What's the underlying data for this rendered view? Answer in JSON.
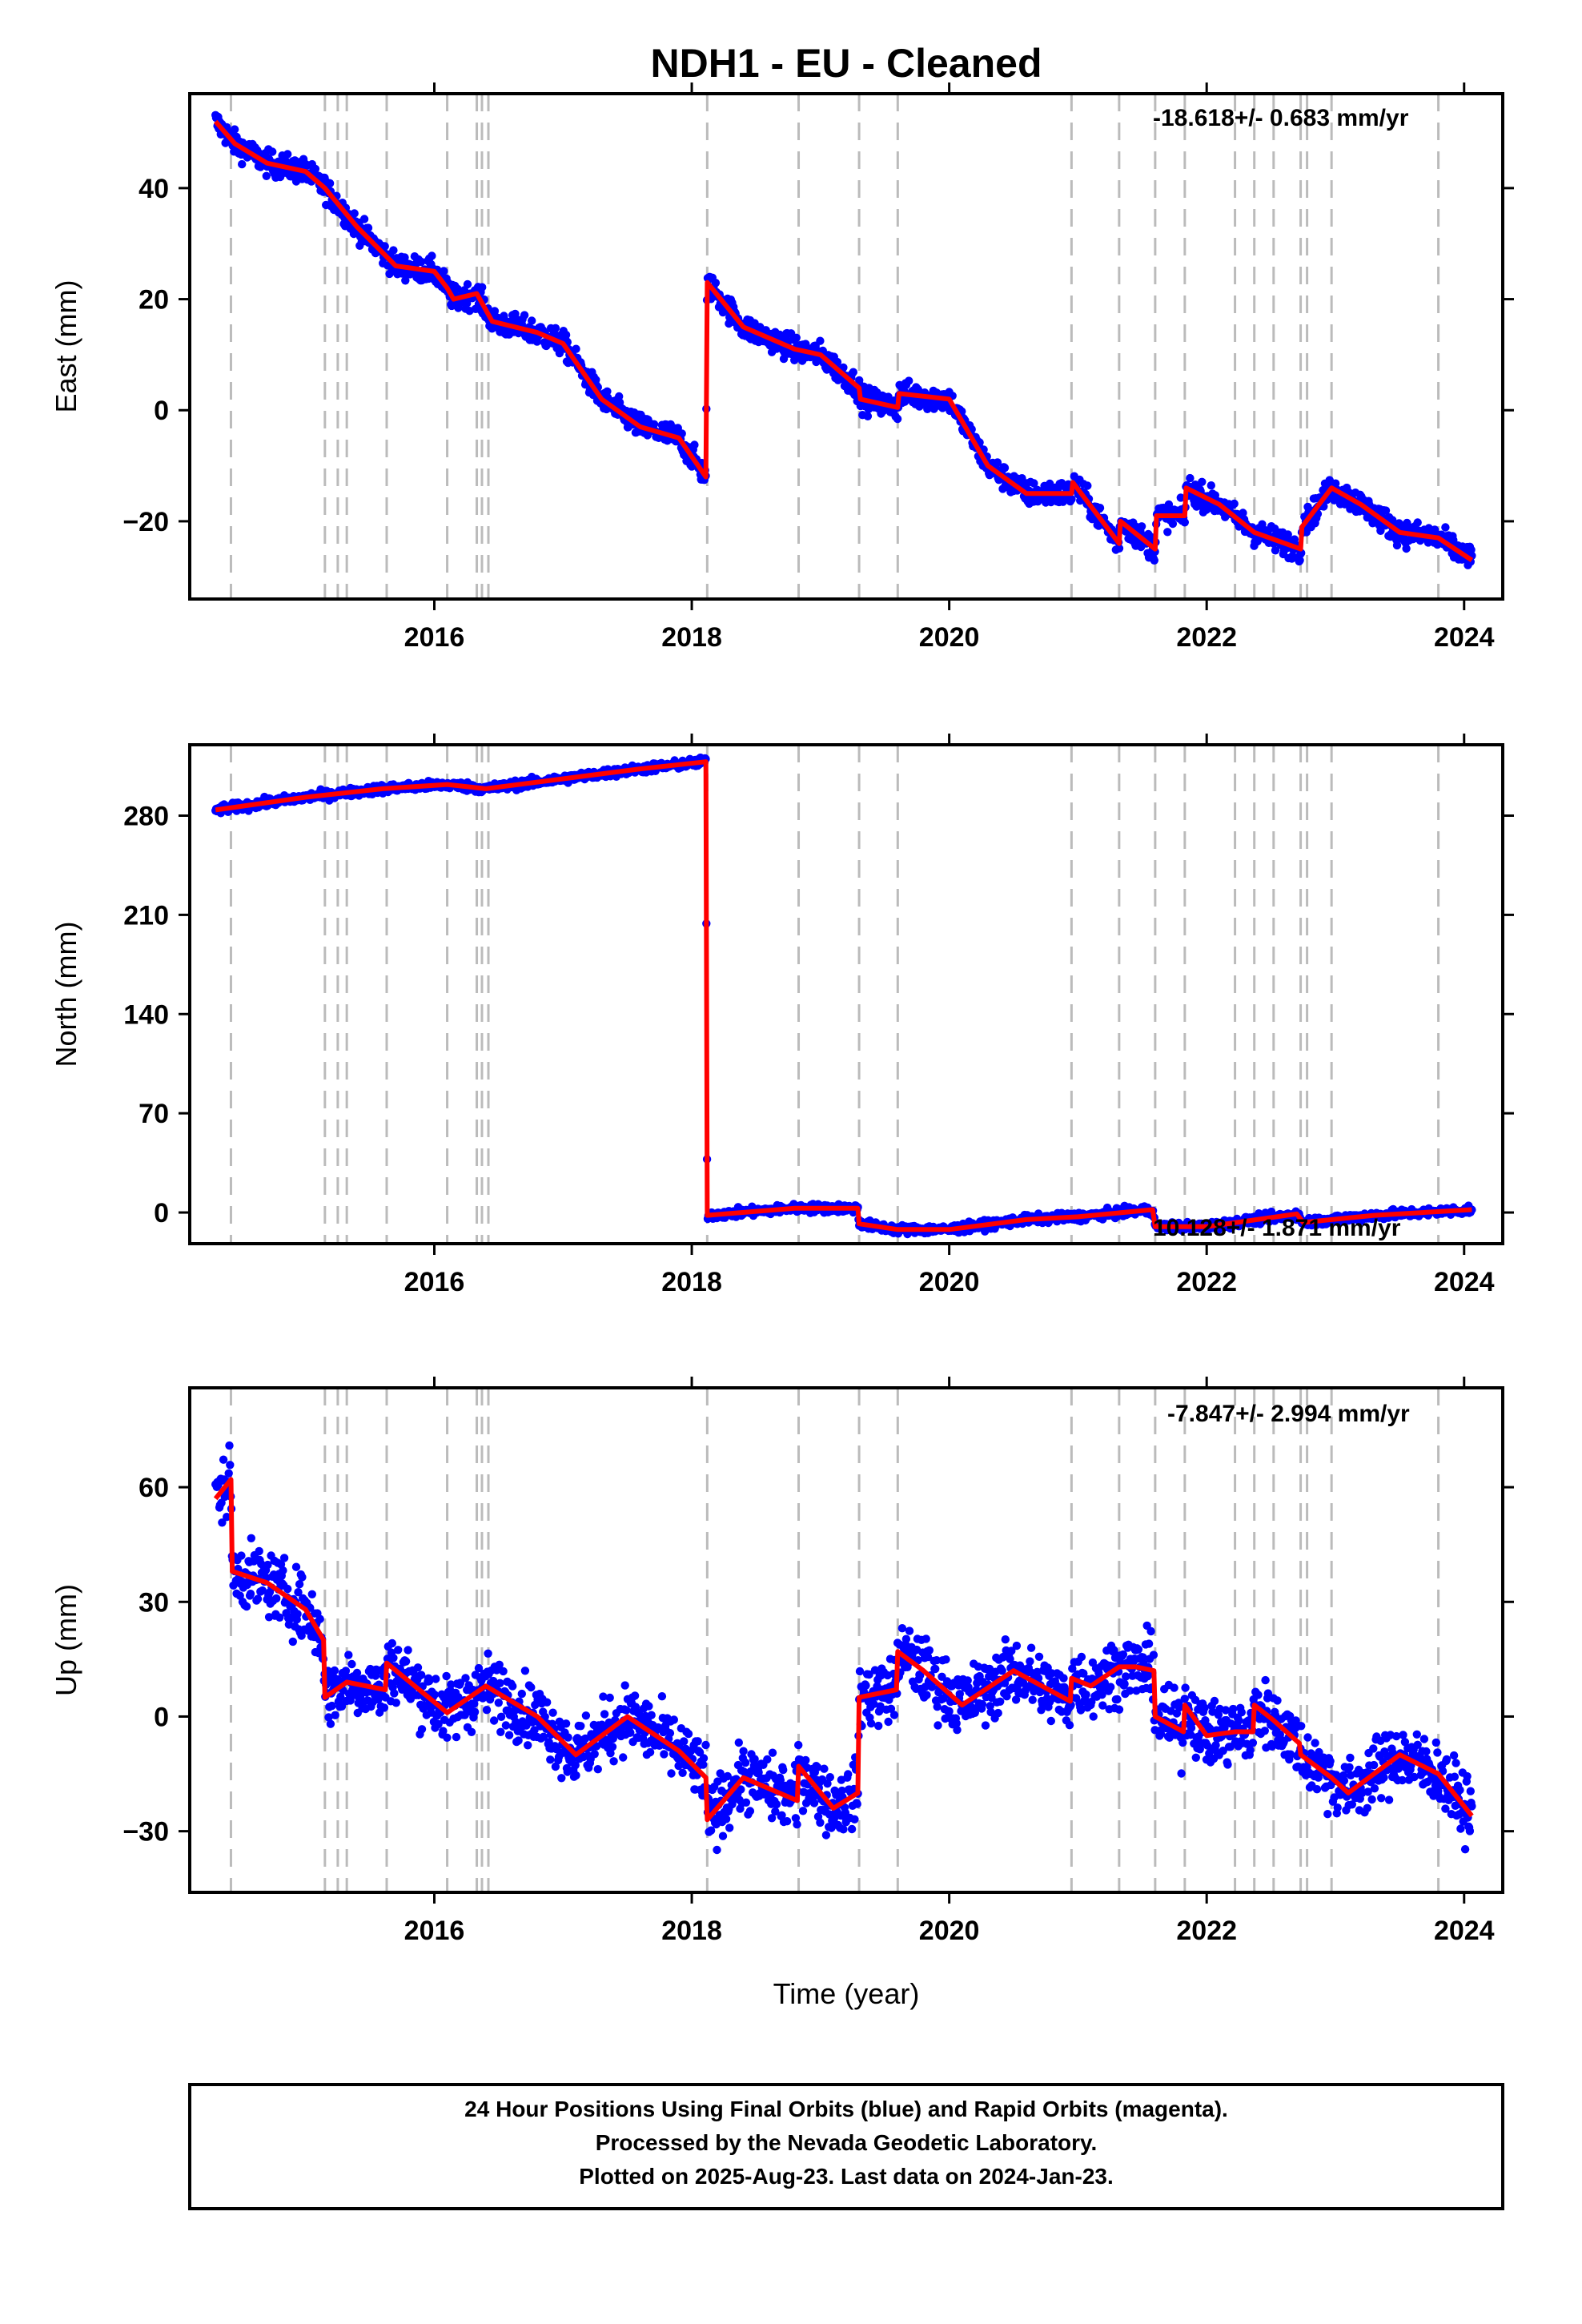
{
  "title": "NDH1  - EU - Cleaned",
  "xlabel": "Time (year)",
  "footer": {
    "line1": "24 Hour Positions Using Final Orbits (blue) and Rapid Orbits (magenta).",
    "line2": "Processed by the Nevada Geodetic Laboratory.",
    "line3": "Plotted on 2025-Aug-23. Last data on 2024-Jan-23."
  },
  "colors": {
    "data": "#0000ff",
    "model": "#ff0000",
    "events": "#bbbbbb",
    "frame": "#000000"
  },
  "chart_data": [
    {
      "type": "scatter",
      "ylabel": "East (mm)",
      "rate_label": "-18.618+/- 0.683 mm/yr",
      "xlim": [
        2014.1,
        2024.3
      ],
      "ylim": [
        -34,
        57
      ],
      "xticks": [
        2016,
        2018,
        2020,
        2022,
        2024
      ],
      "yticks": [
        -20,
        0,
        20,
        40
      ],
      "event_lines": [
        2014.42,
        2015.15,
        2015.25,
        2015.32,
        2015.63,
        2016.1,
        2016.33,
        2016.37,
        2016.42,
        2018.12,
        2018.83,
        2019.3,
        2019.6,
        2020.95,
        2021.32,
        2021.6,
        2021.83,
        2022.22,
        2022.37,
        2022.52,
        2022.73,
        2022.78,
        2022.97,
        2023.8
      ],
      "series": [
        {
          "name": "Final Orbits",
          "style": "points",
          "noise": 1.6,
          "x": [
            2014.3,
            2014.45,
            2014.7,
            2015.0,
            2015.15,
            2015.4,
            2015.7,
            2016.0,
            2016.1,
            2016.15,
            2016.33,
            2016.45,
            2016.8,
            2017.0,
            2017.3,
            2017.6,
            2017.9,
            2018.11,
            2018.12,
            2018.4,
            2018.8,
            2019.0,
            2019.3,
            2019.31,
            2019.6,
            2019.61,
            2020.0,
            2020.3,
            2020.6,
            2020.95,
            2020.96,
            2021.32,
            2021.33,
            2021.6,
            2021.61,
            2021.83,
            2021.84,
            2022.1,
            2022.37,
            2022.73,
            2022.74,
            2022.97,
            2023.2,
            2023.5,
            2023.8,
            2024.06
          ],
          "y": [
            52,
            48,
            44.5,
            43,
            40,
            33,
            26,
            25,
            22,
            20,
            21,
            16,
            14,
            12,
            2,
            -3,
            -5,
            -12,
            23,
            15,
            11,
            10,
            4,
            2,
            0.5,
            3,
            2,
            -10,
            -15,
            -15,
            -13,
            -24,
            -20,
            -25,
            -19,
            -19,
            -14,
            -17,
            -22,
            -25,
            -21,
            -14,
            -17,
            -22,
            -23,
            -27
          ]
        },
        {
          "name": "Model",
          "style": "line",
          "x": [
            2014.3,
            2014.45,
            2014.7,
            2015.0,
            2015.15,
            2015.4,
            2015.7,
            2016.0,
            2016.1,
            2016.15,
            2016.33,
            2016.45,
            2016.8,
            2017.0,
            2017.3,
            2017.6,
            2017.9,
            2018.11,
            2018.12,
            2018.4,
            2018.8,
            2019.0,
            2019.3,
            2019.31,
            2019.6,
            2019.61,
            2020.0,
            2020.3,
            2020.6,
            2020.95,
            2020.96,
            2021.32,
            2021.33,
            2021.6,
            2021.61,
            2021.83,
            2021.84,
            2022.1,
            2022.37,
            2022.73,
            2022.74,
            2022.97,
            2023.2,
            2023.5,
            2023.8,
            2024.06
          ],
          "y": [
            52,
            48,
            44.5,
            43,
            40,
            33,
            26,
            25,
            22,
            20,
            21,
            16,
            14,
            12,
            2,
            -3,
            -5,
            -12,
            23,
            15,
            11,
            10,
            4,
            2,
            0.5,
            3,
            2,
            -10,
            -15,
            -15,
            -13,
            -24,
            -20,
            -25,
            -19,
            -19,
            -14,
            -17,
            -22,
            -25,
            -21,
            -14,
            -17,
            -22,
            -23,
            -27
          ]
        }
      ]
    },
    {
      "type": "scatter",
      "ylabel": "North (mm)",
      "rate_label": "10.128+/- 1.871 mm/yr",
      "xlim": [
        2014.1,
        2024.3
      ],
      "ylim": [
        -22,
        330
      ],
      "xticks": [
        2016,
        2018,
        2020,
        2022,
        2024
      ],
      "yticks": [
        0,
        70,
        140,
        210,
        280
      ],
      "event_lines": [
        2014.42,
        2015.15,
        2015.25,
        2015.32,
        2015.63,
        2016.1,
        2016.33,
        2016.37,
        2016.42,
        2018.12,
        2018.83,
        2019.3,
        2019.6,
        2020.95,
        2021.32,
        2021.6,
        2021.83,
        2022.22,
        2022.37,
        2022.52,
        2022.73,
        2022.78,
        2022.97,
        2023.8
      ],
      "series": [
        {
          "name": "Final Orbits",
          "style": "points",
          "noise": 2.2,
          "x": [
            2014.3,
            2015.0,
            2015.6,
            2016.1,
            2016.4,
            2017.0,
            2017.6,
            2018.11,
            2018.12,
            2018.8,
            2019.29,
            2019.3,
            2019.6,
            2020.0,
            2020.6,
            2021.0,
            2021.58,
            2021.6,
            2022.0,
            2022.7,
            2022.75,
            2023.3,
            2024.06
          ],
          "y": [
            284,
            293,
            299,
            302,
            299,
            306,
            313,
            318,
            -2,
            3,
            3,
            -8,
            -12,
            -12,
            -5,
            -3,
            2,
            -10,
            -10,
            -1,
            -7,
            -2,
            2
          ]
        },
        {
          "name": "Model",
          "style": "line",
          "x": [
            2014.3,
            2015.0,
            2015.6,
            2016.1,
            2016.4,
            2017.0,
            2017.6,
            2018.11,
            2018.12,
            2018.8,
            2019.29,
            2019.3,
            2019.6,
            2020.0,
            2020.6,
            2021.0,
            2021.58,
            2021.6,
            2022.0,
            2022.7,
            2022.75,
            2023.3,
            2024.06
          ],
          "y": [
            284,
            293,
            299,
            302,
            299,
            306,
            313,
            318,
            -2,
            3,
            3,
            -8,
            -12,
            -12,
            -5,
            -3,
            2,
            -10,
            -10,
            -1,
            -7,
            -2,
            2
          ]
        }
      ]
    },
    {
      "type": "scatter",
      "ylabel": "Up (mm)",
      "rate_label": "-7.847+/- 2.994 mm/yr",
      "xlim": [
        2014.1,
        2024.3
      ],
      "ylim": [
        -46,
        86
      ],
      "xticks": [
        2016,
        2018,
        2020,
        2022,
        2024
      ],
      "yticks": [
        -30,
        0,
        30,
        60
      ],
      "event_lines": [
        2014.42,
        2015.15,
        2015.25,
        2015.32,
        2015.63,
        2016.1,
        2016.33,
        2016.37,
        2016.42,
        2018.12,
        2018.83,
        2019.3,
        2019.6,
        2020.95,
        2021.32,
        2021.6,
        2021.83,
        2022.22,
        2022.37,
        2022.52,
        2022.73,
        2022.78,
        2022.97,
        2023.8
      ],
      "series": [
        {
          "name": "Final Orbits",
          "style": "points",
          "noise": 6,
          "x": [
            2014.3,
            2014.42,
            2014.43,
            2014.7,
            2015.0,
            2015.14,
            2015.15,
            2015.32,
            2015.62,
            2015.63,
            2016.1,
            2016.4,
            2016.8,
            2017.1,
            2017.5,
            2017.9,
            2018.11,
            2018.12,
            2018.4,
            2018.82,
            2018.83,
            2019.1,
            2019.29,
            2019.3,
            2019.59,
            2019.6,
            2019.8,
            2020.1,
            2020.5,
            2020.94,
            2020.95,
            2021.1,
            2021.32,
            2021.45,
            2021.59,
            2021.6,
            2021.82,
            2021.83,
            2022.0,
            2022.22,
            2022.36,
            2022.37,
            2022.52,
            2022.72,
            2022.73,
            2022.97,
            2023.1,
            2023.5,
            2023.8,
            2024.06
          ],
          "y": [
            57,
            62,
            38,
            35,
            28,
            20,
            5,
            9,
            7,
            14,
            1,
            8,
            0,
            -10,
            0,
            -9,
            -16,
            -27,
            -16,
            -22,
            -13,
            -24,
            -20,
            5,
            7,
            17,
            12,
            3,
            12,
            4,
            10,
            8,
            13,
            13,
            12,
            0,
            -4,
            3,
            -5,
            -4,
            -4,
            3,
            -1,
            -7,
            -10,
            -16,
            -20,
            -10,
            -15,
            -26
          ]
        },
        {
          "name": "Model",
          "style": "line",
          "x": [
            2014.3,
            2014.42,
            2014.43,
            2014.7,
            2015.0,
            2015.14,
            2015.15,
            2015.32,
            2015.62,
            2015.63,
            2016.1,
            2016.4,
            2016.8,
            2017.1,
            2017.5,
            2017.9,
            2018.11,
            2018.12,
            2018.4,
            2018.82,
            2018.83,
            2019.1,
            2019.29,
            2019.3,
            2019.59,
            2019.6,
            2019.8,
            2020.1,
            2020.5,
            2020.94,
            2020.95,
            2021.1,
            2021.32,
            2021.45,
            2021.59,
            2021.6,
            2021.82,
            2021.83,
            2022.0,
            2022.22,
            2022.36,
            2022.37,
            2022.52,
            2022.72,
            2022.73,
            2022.97,
            2023.1,
            2023.5,
            2023.8,
            2024.06
          ],
          "y": [
            57,
            62,
            38,
            35,
            28,
            20,
            5,
            9,
            7,
            14,
            1,
            8,
            0,
            -10,
            0,
            -9,
            -16,
            -27,
            -16,
            -22,
            -13,
            -24,
            -20,
            5,
            7,
            17,
            12,
            3,
            12,
            4,
            10,
            8,
            13,
            13,
            12,
            0,
            -4,
            3,
            -5,
            -4,
            -4,
            3,
            -1,
            -7,
            -10,
            -16,
            -20,
            -10,
            -15,
            -26
          ]
        }
      ]
    }
  ]
}
